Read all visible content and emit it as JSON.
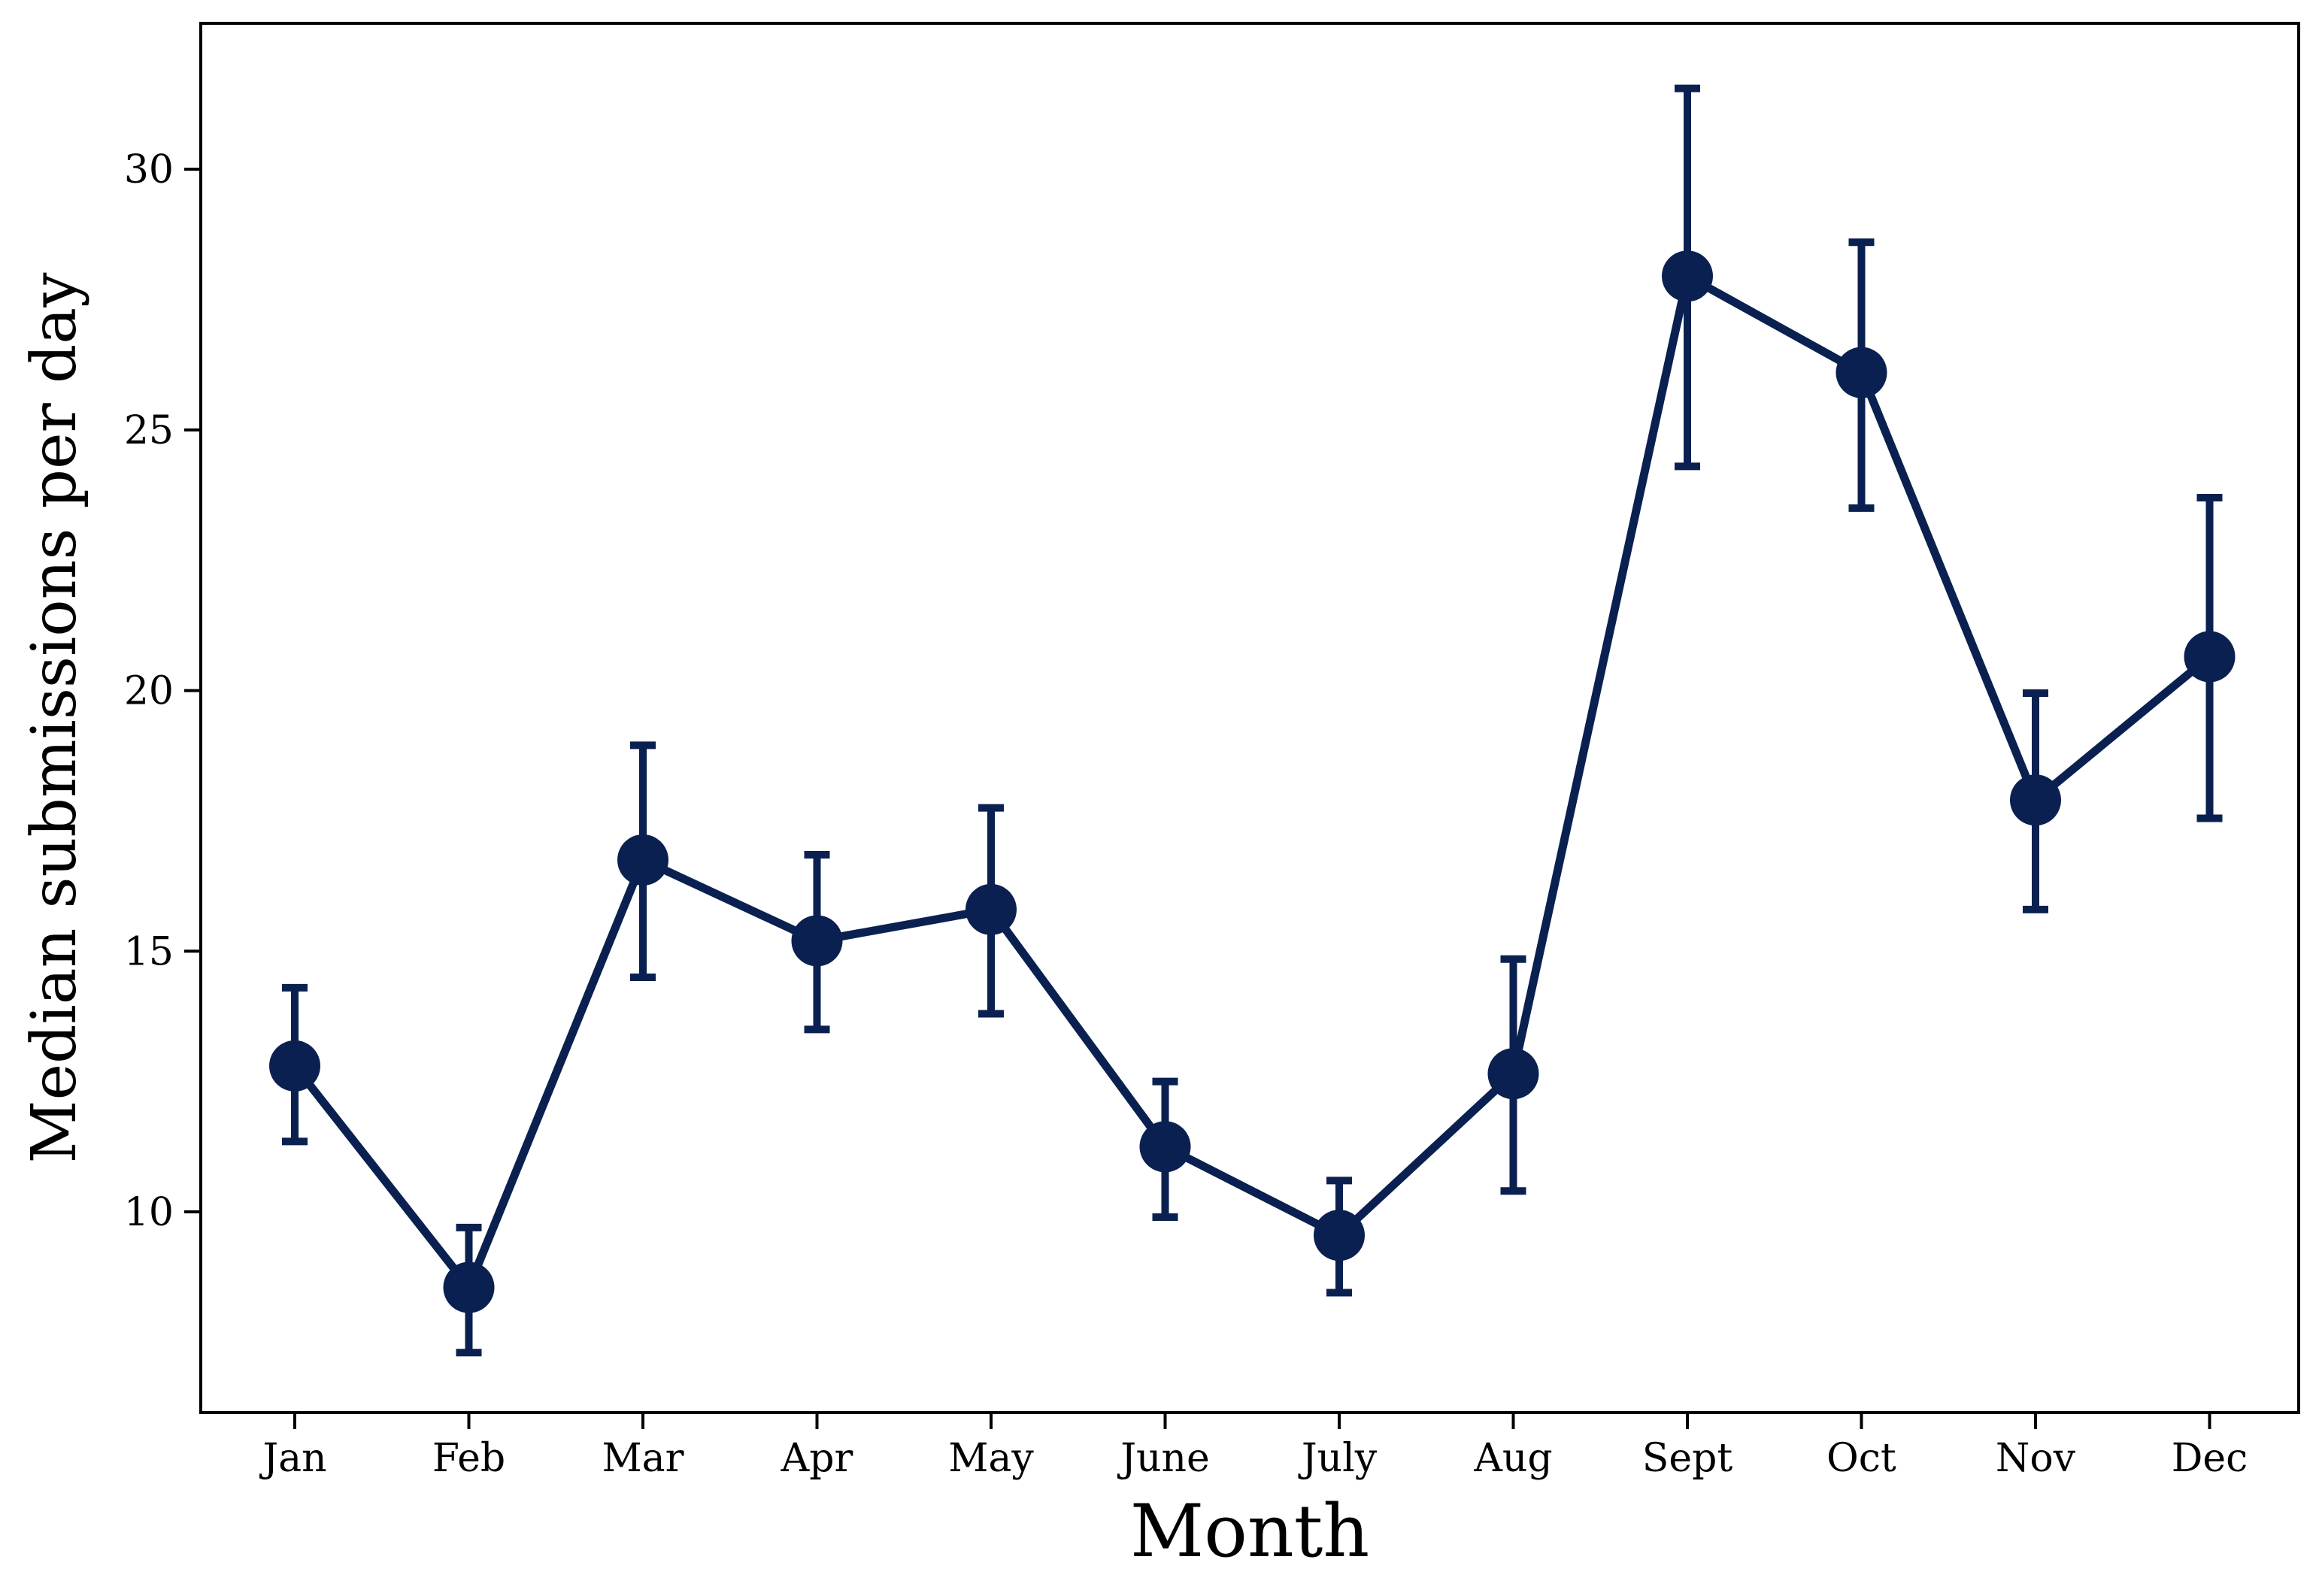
{
  "chart_data": {
    "type": "line",
    "title": "",
    "xlabel": "Month",
    "ylabel": "Median submissions per day",
    "categories": [
      "Jan",
      "Feb",
      "Mar",
      "Apr",
      "May",
      "June",
      "July",
      "Aug",
      "Sept",
      "Oct",
      "Nov",
      "Dec"
    ],
    "series": [
      {
        "values": [
          12.8,
          8.55,
          16.75,
          15.2,
          15.8,
          11.25,
          9.55,
          12.65,
          27.95,
          26.1,
          17.9,
          20.65
        ],
        "error_low": [
          11.35,
          7.3,
          14.5,
          13.5,
          13.8,
          9.9,
          8.45,
          10.4,
          24.3,
          23.5,
          15.8,
          17.55
        ],
        "error_high": [
          14.3,
          9.7,
          18.95,
          16.85,
          17.75,
          12.5,
          10.6,
          14.85,
          31.55,
          28.6,
          19.95,
          23.7
        ]
      }
    ],
    "ylim": [
      6.15,
      32.8
    ],
    "yticks": [
      10,
      15,
      20,
      25,
      30
    ],
    "grid": false,
    "legend": "none",
    "colors": {
      "series": "#0a2050",
      "axis": "#000000"
    }
  }
}
